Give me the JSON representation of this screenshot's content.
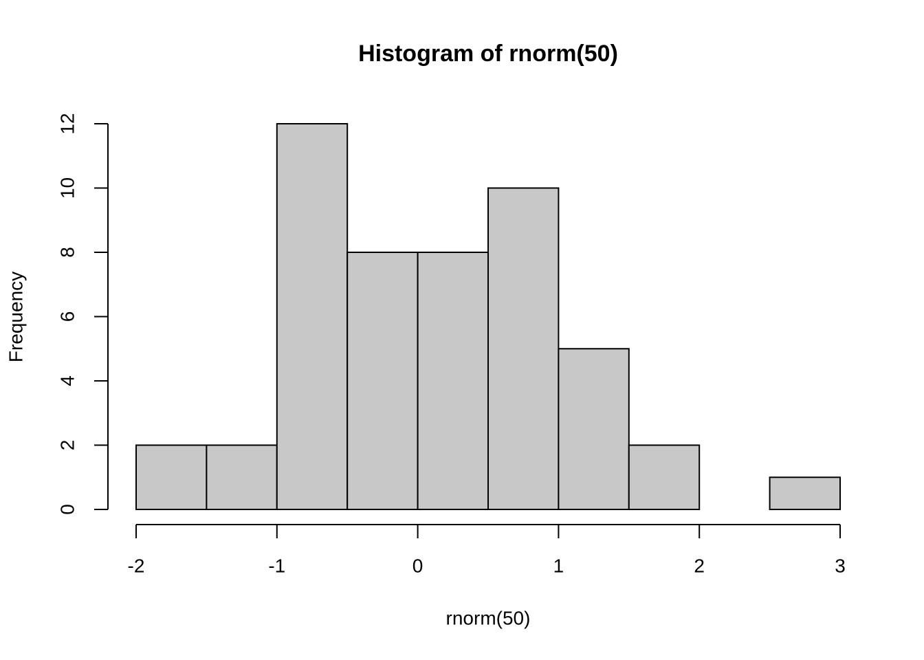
{
  "chart_data": {
    "type": "histogram",
    "title": "Histogram of rnorm(50)",
    "x_label": "rnorm(50)",
    "y_label": "Frequency",
    "bins": [
      -2,
      -1.5,
      -1,
      -0.5,
      0,
      0.5,
      1,
      1.5,
      2,
      2.5,
      3
    ],
    "values": [
      2,
      2,
      12,
      8,
      8,
      10,
      5,
      2,
      0,
      1
    ],
    "color": "#c8c8c8",
    "xlim": [
      -2,
      3
    ],
    "xticks": [
      -2,
      -1,
      0,
      1,
      2,
      3
    ],
    "ylim": [
      0,
      12
    ],
    "yticks": [
      0,
      2,
      4,
      6,
      8,
      10,
      12
    ]
  }
}
